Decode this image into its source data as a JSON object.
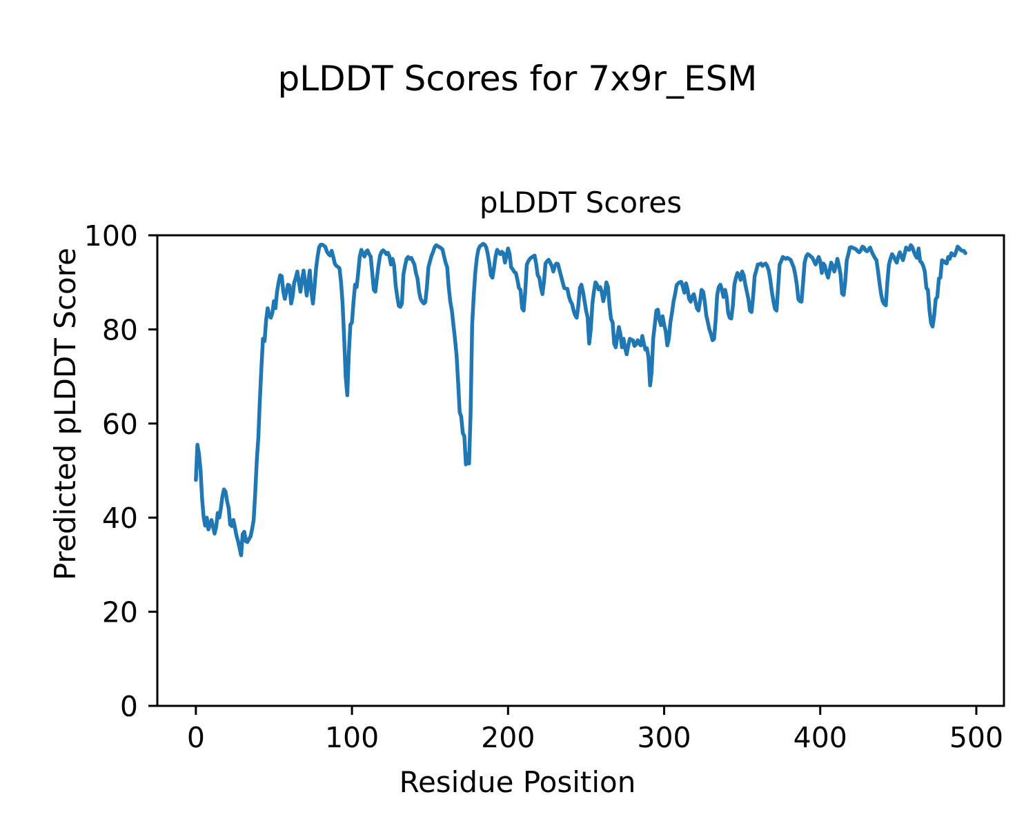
{
  "chart_data": {
    "type": "line",
    "suptitle": "pLDDT Scores for 7x9r_ESM",
    "title": "pLDDT Scores",
    "xlabel": "Residue Position",
    "ylabel": "Predicted pLDDT Score",
    "xticks": [
      0,
      100,
      200,
      300,
      400,
      500
    ],
    "yticks": [
      0,
      20,
      40,
      60,
      80,
      100
    ],
    "xlim": [
      -24.7,
      517.7
    ],
    "ylim": [
      0,
      100
    ],
    "grid": false,
    "legend": null,
    "line_color": "#1f77b4",
    "x_start": 0,
    "x_step": 1,
    "series": [
      {
        "name": "pLDDT",
        "y": [
          48,
          55.5,
          53.5,
          50,
          44,
          40,
          38.3,
          40,
          37.5,
          38.5,
          39.5,
          38,
          36.6,
          38,
          41,
          40,
          42,
          44.5,
          46,
          45.5,
          43.5,
          42,
          38.5,
          38.2,
          39.5,
          38,
          36.2,
          35,
          33.5,
          32,
          36.5,
          37,
          35,
          34.8,
          35.5,
          36,
          37.5,
          39.5,
          45,
          52,
          57,
          65,
          72,
          78,
          77.5,
          82,
          84.5,
          83,
          82.5,
          83.5,
          86,
          84.5,
          88,
          90,
          91.5,
          91.3,
          88,
          86.5,
          88,
          89.5,
          89.3,
          85.5,
          87,
          90,
          91,
          92.3,
          90,
          88,
          90.5,
          92.5,
          90,
          87.2,
          90,
          92.5,
          88,
          85.5,
          89,
          93,
          95.5,
          97.5,
          98,
          98,
          97.8,
          97.5,
          96.5,
          96,
          95.7,
          96.7,
          95.5,
          94,
          93.5,
          93.3,
          93,
          90,
          85.5,
          78,
          70,
          66,
          75,
          81,
          81.5,
          86,
          89.5,
          89,
          92,
          95.5,
          96.9,
          96,
          95.5,
          96.5,
          96.8,
          96,
          95.5,
          92,
          88.4,
          88,
          91,
          93.5,
          95.7,
          96.5,
          96.8,
          96.5,
          96,
          96.3,
          95.5,
          93.8,
          95,
          93.5,
          89.4,
          87,
          85,
          84.8,
          85.5,
          91.7,
          93.5,
          95,
          95.4,
          95,
          95.2,
          94.5,
          93.8,
          92,
          90.8,
          88,
          86.5,
          85.9,
          85.5,
          85.8,
          89,
          93.2,
          94.5,
          95.7,
          96.5,
          97.5,
          97.9,
          97.7,
          97.5,
          97.3,
          97,
          95.5,
          94.2,
          93.2,
          89,
          85.9,
          84,
          81,
          78,
          74.5,
          68.9,
          62.4,
          61.5,
          58,
          57.3,
          51.3,
          53.5,
          51.5,
          62,
          81,
          87,
          92,
          95.2,
          97,
          97.7,
          97.9,
          98.2,
          98,
          97.5,
          96,
          94,
          91.5,
          91,
          93,
          95.5,
          96.9,
          96.5,
          96,
          96.5,
          96.2,
          94.2,
          95.5,
          97.2,
          96,
          93.2,
          92.8,
          92.2,
          92,
          90.5,
          88.8,
          88.4,
          84.5,
          84,
          88,
          93.8,
          94.5,
          95,
          95.3,
          95.5,
          95.7,
          94,
          91.5,
          91,
          89,
          87.5,
          90,
          94,
          94.5,
          94.8,
          94.2,
          93.5,
          92.3,
          93.5,
          94,
          93.9,
          92.5,
          91.3,
          90,
          88.8,
          88.7,
          88.6,
          87,
          86,
          85.4,
          84,
          83,
          82.5,
          85,
          88.8,
          89.5,
          88,
          86,
          84,
          82.5,
          77,
          80,
          85.4,
          88,
          90,
          89.5,
          88.5,
          89,
          88,
          86,
          87.5,
          90,
          89,
          85,
          82.2,
          81.5,
          77,
          76.2,
          78.5,
          80.5,
          79,
          76.2,
          78,
          76,
          74.7,
          76.5,
          78,
          77.8,
          77.7,
          76.5,
          76.8,
          77.7,
          77,
          76.6,
          78.6,
          77,
          75.7,
          76,
          74,
          68.1,
          71,
          78.1,
          81,
          84,
          84.2,
          82,
          80.9,
          82.8,
          81,
          79.6,
          76.6,
          78,
          81.5,
          83.5,
          85.9,
          87.5,
          89.4,
          89.8,
          90,
          90.1,
          89,
          87.8,
          89.8,
          88.5,
          86.5,
          85.9,
          87,
          87.5,
          86,
          84.5,
          84,
          86,
          88.4,
          88,
          86,
          83,
          81.5,
          80,
          79,
          77.7,
          78,
          82,
          87.3,
          89,
          89.5,
          88.5,
          86.9,
          88.4,
          87,
          83.5,
          82.5,
          82.3,
          85,
          89.5,
          91,
          92,
          91.5,
          90.5,
          92.3,
          91.5,
          89.5,
          88,
          86.4,
          84,
          83.7,
          87,
          91.3,
          92.5,
          93.8,
          93.8,
          94,
          93.5,
          93.8,
          94,
          93.5,
          92.5,
          90.5,
          88,
          86,
          84.4,
          84,
          89,
          93.8,
          94.5,
          95.4,
          95.2,
          95,
          95.2,
          95,
          94.8,
          94,
          93.2,
          91.7,
          89.5,
          86.4,
          86,
          85.9,
          90,
          94.2,
          95.5,
          96,
          95.8,
          95.5,
          95.2,
          94.5,
          93.8,
          94.5,
          95.4,
          94.5,
          92,
          94,
          93.5,
          92,
          91,
          92.5,
          94.2,
          93.5,
          92.3,
          93.5,
          95,
          93.5,
          91.7,
          87.6,
          87.3,
          90,
          94.7,
          96,
          97.4,
          97.5,
          97.3,
          97.2,
          97,
          96.6,
          96.4,
          96.8,
          97.6,
          97.4,
          96.8,
          96.6,
          97,
          97.4,
          96.5,
          95.8,
          95.2,
          94.7,
          92.5,
          89.8,
          87.5,
          86,
          85.4,
          85.1,
          90,
          93.8,
          95,
          96,
          95.5,
          94.8,
          94.2,
          95.5,
          96.4,
          95.5,
          94.7,
          96,
          97.4,
          97,
          96.9,
          97.9,
          97.5,
          96.5,
          95.7,
          95.2,
          97.2,
          94.5,
          94.2,
          93.5,
          92.3,
          88.8,
          88.4,
          84,
          81.3,
          80.6,
          83,
          86.4,
          86.9,
          90.8,
          91,
          94.7,
          94.5,
          94.2,
          94,
          95.4,
          95,
          96.2,
          95.8,
          95.7,
          96.5,
          97.6,
          97.3,
          96.9,
          96.7,
          96.7,
          96.2
        ]
      }
    ]
  }
}
